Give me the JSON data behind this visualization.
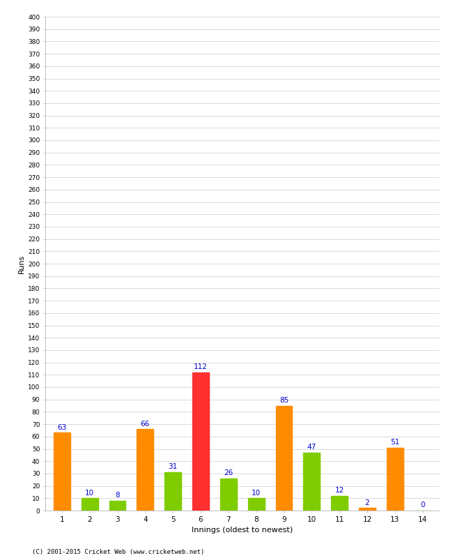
{
  "innings": [
    1,
    2,
    3,
    4,
    5,
    6,
    7,
    8,
    9,
    10,
    11,
    12,
    13,
    14
  ],
  "values": [
    63,
    10,
    8,
    66,
    31,
    112,
    26,
    10,
    85,
    47,
    12,
    2,
    51,
    0
  ],
  "colors": [
    "#FF8C00",
    "#7FCC00",
    "#7FCC00",
    "#FF8C00",
    "#7FCC00",
    "#FF3030",
    "#7FCC00",
    "#7FCC00",
    "#FF8C00",
    "#7FCC00",
    "#7FCC00",
    "#FF8C00",
    "#FF8C00",
    "#7FCC00"
  ],
  "xlabel": "Innings (oldest to newest)",
  "ylabel": "Runs",
  "ylim": [
    0,
    400
  ],
  "ytick_step": 10,
  "label_color": "#0000CC",
  "background_color": "#FFFFFF",
  "grid_color": "#CCCCCC",
  "copyright": "(C) 2001-2015 Cricket Web (www.cricketweb.net)"
}
